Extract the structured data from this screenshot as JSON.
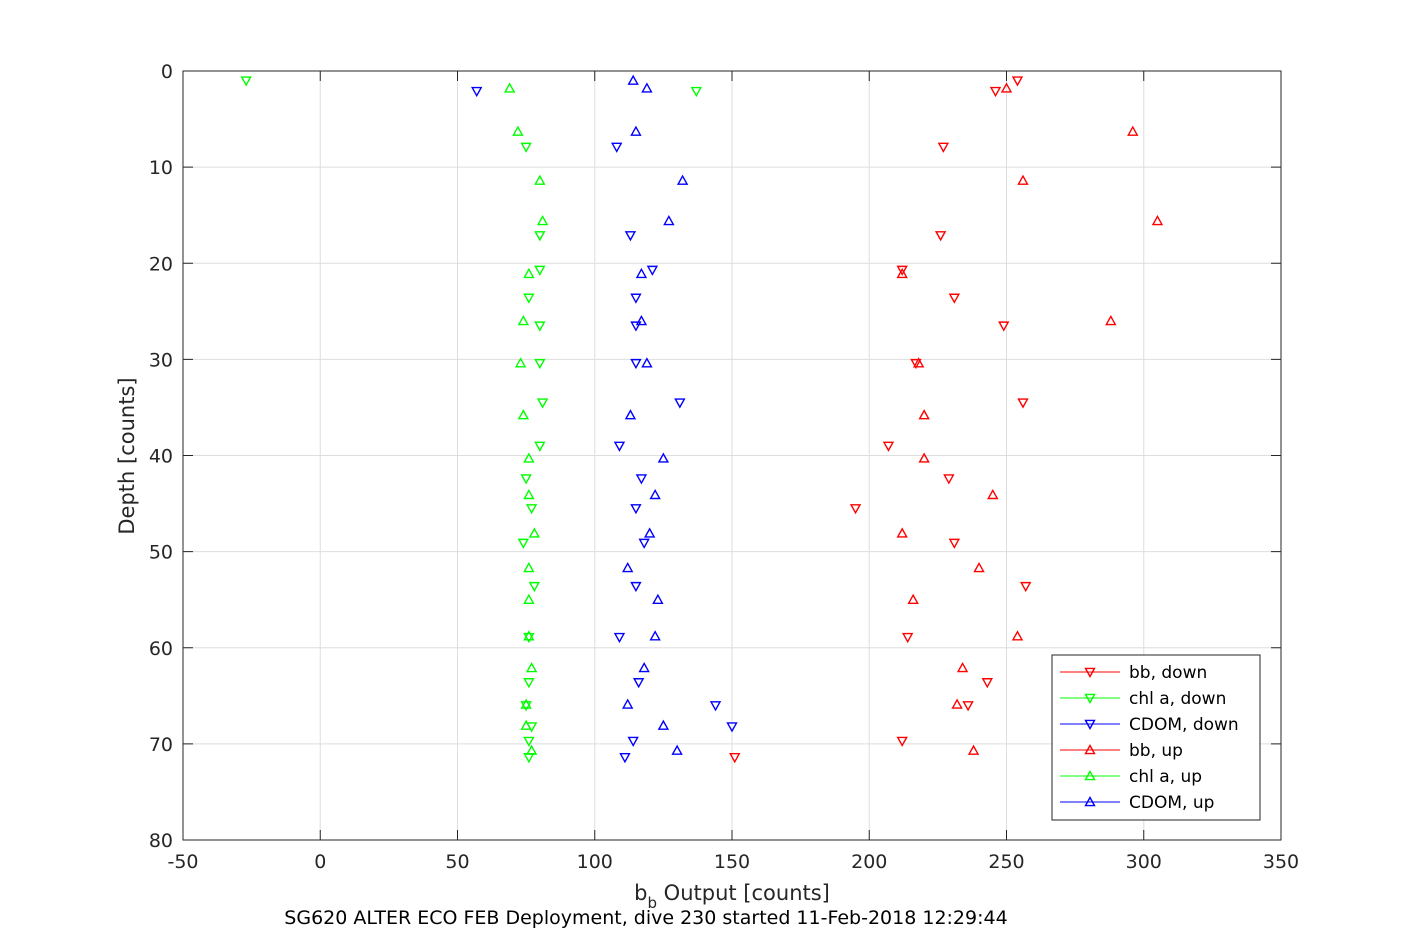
{
  "chart_data": {
    "type": "scatter",
    "xlabel_main": "b",
    "xlabel_sub": "b",
    "xlabel_rest": " Output [counts]",
    "ylabel": "Depth [counts]",
    "caption": "SG620 ALTER ECO FEB Deployment, dive 230 started 11-Feb-2018 12:29:44",
    "xlim": [
      -50,
      350
    ],
    "ylim": [
      0,
      80
    ],
    "y_reversed": true,
    "x_ticks": [
      "-50",
      "0",
      "50",
      "100",
      "150",
      "200",
      "250",
      "300",
      "350"
    ],
    "y_ticks": [
      "0",
      "10",
      "20",
      "30",
      "40",
      "50",
      "60",
      "70",
      "80"
    ],
    "grid": true,
    "legend_position": "bottom-right",
    "series": [
      {
        "name": "bb, down",
        "color": "#ff0000",
        "marker": "triangle-down",
        "points": [
          [
            254,
            1
          ],
          [
            246,
            2.1
          ],
          [
            227,
            7.9
          ],
          [
            226,
            17.1
          ],
          [
            212,
            20.7
          ],
          [
            231,
            23.6
          ],
          [
            249,
            26.5
          ],
          [
            217,
            30.4
          ],
          [
            256,
            34.5
          ],
          [
            207,
            39
          ],
          [
            229,
            42.4
          ],
          [
            195,
            45.5
          ],
          [
            231,
            49.1
          ],
          [
            257,
            53.6
          ],
          [
            214,
            58.9
          ],
          [
            243,
            63.6
          ],
          [
            236,
            66
          ],
          [
            212,
            69.7
          ],
          [
            151,
            71.4
          ]
        ]
      },
      {
        "name": "chl a, down",
        "color": "#00ff00",
        "marker": "triangle-down",
        "points": [
          [
            -27,
            1
          ],
          [
            137,
            2.1
          ],
          [
            75,
            7.9
          ],
          [
            80,
            17.1
          ],
          [
            80,
            20.7
          ],
          [
            76,
            23.6
          ],
          [
            80,
            26.5
          ],
          [
            80,
            30.4
          ],
          [
            81,
            34.5
          ],
          [
            80,
            39
          ],
          [
            75,
            42.4
          ],
          [
            77,
            45.5
          ],
          [
            74,
            49.1
          ],
          [
            78,
            53.6
          ],
          [
            76,
            58.9
          ],
          [
            76,
            63.6
          ],
          [
            75,
            66
          ],
          [
            77,
            68.2
          ],
          [
            76,
            69.7
          ],
          [
            76,
            71.4
          ]
        ]
      },
      {
        "name": "CDOM, down",
        "color": "#0000ff",
        "marker": "triangle-down",
        "points": [
          [
            57,
            2.1
          ],
          [
            108,
            7.9
          ],
          [
            113,
            17.1
          ],
          [
            121,
            20.7
          ],
          [
            115,
            23.6
          ],
          [
            115,
            26.5
          ],
          [
            115,
            30.4
          ],
          [
            131,
            34.5
          ],
          [
            109,
            39
          ],
          [
            117,
            42.4
          ],
          [
            115,
            45.5
          ],
          [
            118,
            49.1
          ],
          [
            115,
            53.6
          ],
          [
            109,
            58.9
          ],
          [
            116,
            63.6
          ],
          [
            144,
            66
          ],
          [
            150,
            68.2
          ],
          [
            114,
            69.7
          ],
          [
            111,
            71.4
          ]
        ]
      },
      {
        "name": "bb, up",
        "color": "#ff0000",
        "marker": "triangle-up",
        "points": [
          [
            250,
            1.8
          ],
          [
            296,
            6.3
          ],
          [
            256,
            11.4
          ],
          [
            305,
            15.6
          ],
          [
            212,
            21.1
          ],
          [
            288,
            26
          ],
          [
            218,
            30.4
          ],
          [
            220,
            35.8
          ],
          [
            220,
            40.3
          ],
          [
            245,
            44.1
          ],
          [
            212,
            48.1
          ],
          [
            240,
            51.7
          ],
          [
            216,
            55
          ],
          [
            254,
            58.8
          ],
          [
            234,
            62.1
          ],
          [
            232,
            65.9
          ],
          [
            238,
            70.7
          ]
        ]
      },
      {
        "name": "chl a, up",
        "color": "#00ff00",
        "marker": "triangle-up",
        "points": [
          [
            69,
            1.8
          ],
          [
            72,
            6.3
          ],
          [
            80,
            11.4
          ],
          [
            81,
            15.6
          ],
          [
            76,
            21.1
          ],
          [
            74,
            26
          ],
          [
            73,
            30.4
          ],
          [
            74,
            35.8
          ],
          [
            76,
            40.3
          ],
          [
            76,
            44.1
          ],
          [
            78,
            48.1
          ],
          [
            76,
            51.7
          ],
          [
            76,
            55
          ],
          [
            76,
            58.8
          ],
          [
            77,
            62.1
          ],
          [
            75,
            65.9
          ],
          [
            75,
            68.1
          ],
          [
            77,
            70.7
          ]
        ]
      },
      {
        "name": "CDOM, up",
        "color": "#0000ff",
        "marker": "triangle-up",
        "points": [
          [
            114,
            1
          ],
          [
            119,
            1.8
          ],
          [
            115,
            6.3
          ],
          [
            132,
            11.4
          ],
          [
            127,
            15.6
          ],
          [
            117,
            21.1
          ],
          [
            117,
            26
          ],
          [
            119,
            30.4
          ],
          [
            113,
            35.8
          ],
          [
            125,
            40.3
          ],
          [
            122,
            44.1
          ],
          [
            120,
            48.1
          ],
          [
            112,
            51.7
          ],
          [
            123,
            55
          ],
          [
            122,
            58.8
          ],
          [
            118,
            62.1
          ],
          [
            112,
            65.9
          ],
          [
            125,
            68.1
          ],
          [
            130,
            70.7
          ]
        ]
      }
    ]
  }
}
